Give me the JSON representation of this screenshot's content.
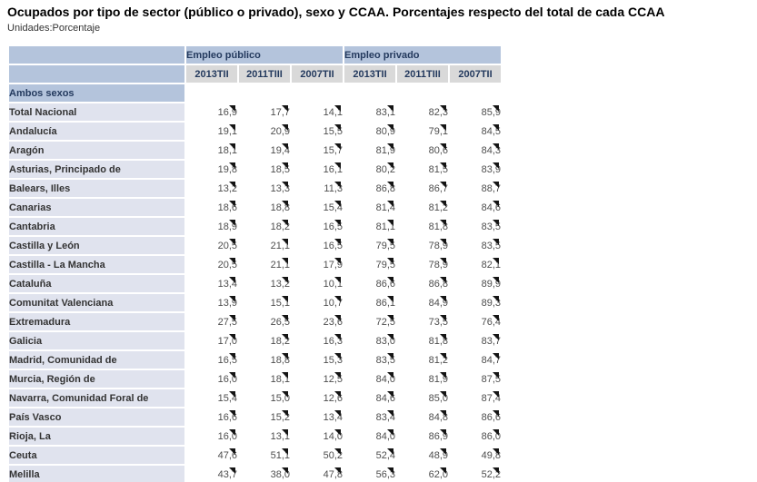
{
  "page": {
    "title": "Ocupados por tipo de sector (público o privado), sexo y CCAA. Porcentajes respecto del total de cada CCAA",
    "units_label": "Unidades:Porcentaje"
  },
  "table": {
    "column_groups": [
      {
        "label": "Empleo público"
      },
      {
        "label": "Empleo privado"
      }
    ],
    "periods": [
      "2013TII",
      "2011TIII",
      "2007TII"
    ],
    "section_label": "Ambos sexos",
    "marker_icon": "corner-triangle-icon",
    "rows": [
      {
        "label": "Total Nacional",
        "values": [
          "16,9",
          "17,7",
          "14,1",
          "83,1",
          "82,3",
          "85,9"
        ]
      },
      {
        "label": "Andalucía",
        "values": [
          "19,1",
          "20,9",
          "15,5",
          "80,9",
          "79,1",
          "84,5"
        ]
      },
      {
        "label": "Aragón",
        "values": [
          "18,1",
          "19,4",
          "15,7",
          "81,9",
          "80,6",
          "84,3"
        ]
      },
      {
        "label": "Asturias, Principado de",
        "values": [
          "19,8",
          "18,5",
          "16,1",
          "80,2",
          "81,5",
          "83,9"
        ]
      },
      {
        "label": "Balears, Illes",
        "values": [
          "13,2",
          "13,3",
          "11,3",
          "86,8",
          "86,7",
          "88,7"
        ]
      },
      {
        "label": "Canarias",
        "values": [
          "18,6",
          "18,8",
          "15,4",
          "81,4",
          "81,2",
          "84,6"
        ]
      },
      {
        "label": "Cantabria",
        "values": [
          "18,9",
          "18,2",
          "16,5",
          "81,1",
          "81,8",
          "83,5"
        ]
      },
      {
        "label": "Castilla y León",
        "values": [
          "20,5",
          "21,1",
          "16,5",
          "79,5",
          "78,9",
          "83,5"
        ]
      },
      {
        "label": "Castilla - La Mancha",
        "values": [
          "20,5",
          "21,1",
          "17,9",
          "79,5",
          "78,9",
          "82,1"
        ]
      },
      {
        "label": "Cataluña",
        "values": [
          "13,4",
          "13,2",
          "10,1",
          "86,6",
          "86,8",
          "89,9"
        ]
      },
      {
        "label": "Comunitat Valenciana",
        "values": [
          "13,9",
          "15,1",
          "10,7",
          "86,1",
          "84,9",
          "89,3"
        ]
      },
      {
        "label": "Extremadura",
        "values": [
          "27,5",
          "26,5",
          "23,6",
          "72,5",
          "73,5",
          "76,4"
        ]
      },
      {
        "label": "Galicia",
        "values": [
          "17,0",
          "18,2",
          "16,3",
          "83,0",
          "81,8",
          "83,7"
        ]
      },
      {
        "label": "Madrid, Comunidad de",
        "values": [
          "16,5",
          "18,8",
          "15,3",
          "83,5",
          "81,2",
          "84,7"
        ]
      },
      {
        "label": "Murcia, Región de",
        "values": [
          "16,0",
          "18,1",
          "12,5",
          "84,0",
          "81,9",
          "87,5"
        ]
      },
      {
        "label": "Navarra, Comunidad Foral de",
        "values": [
          "15,4",
          "15,0",
          "12,6",
          "84,6",
          "85,0",
          "87,4"
        ]
      },
      {
        "label": "País Vasco",
        "values": [
          "16,6",
          "15,2",
          "13,4",
          "83,4",
          "84,8",
          "86,6"
        ]
      },
      {
        "label": "Rioja, La",
        "values": [
          "16,0",
          "13,1",
          "14,0",
          "84,0",
          "86,9",
          "86,0"
        ]
      },
      {
        "label": "Ceuta",
        "values": [
          "47,6",
          "51,1",
          "50,2",
          "52,4",
          "48,9",
          "49,8"
        ]
      },
      {
        "label": "Melilla",
        "values": [
          "43,7",
          "38,0",
          "47,8",
          "56,3",
          "62,0",
          "52,2"
        ]
      }
    ]
  },
  "colors": {
    "header_bg": "#b4c4dc",
    "period_header_bg": "#d9d9d9",
    "row_label_bg": "#e0e3ee",
    "header_text": "#243a5e",
    "value_text": "#4d4d4d",
    "marker": "#141414"
  }
}
